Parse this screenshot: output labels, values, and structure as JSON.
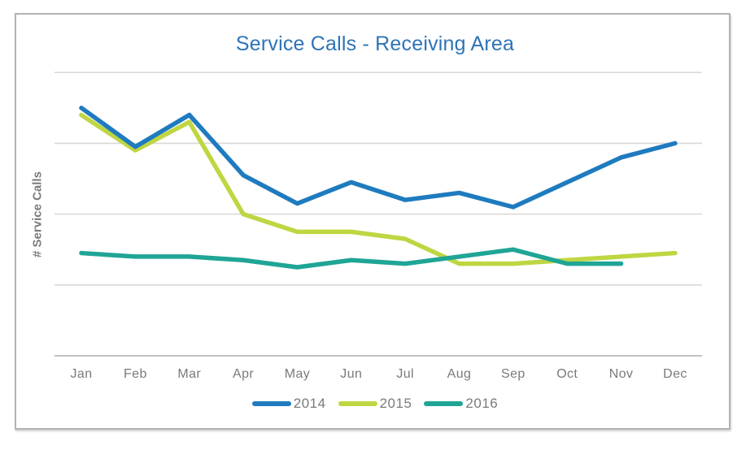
{
  "title": "Service Calls - Receiving Area",
  "y_axis_label": "# Service Calls",
  "colors": {
    "title_text": "#2e74b6",
    "axis_text": "#7a7a7a",
    "gridline": "#d9d9d9",
    "axis_line": "#c2c2c2",
    "frame_border": "#b3b3b3",
    "series_2014": "#1f7bbf",
    "series_2015": "#bfd642",
    "series_2016": "#1fa596"
  },
  "chart_data": {
    "type": "line",
    "title": "Service Calls - Receiving Area",
    "xlabel": "",
    "ylabel": "# Service Calls",
    "categories": [
      "Jan",
      "Feb",
      "Mar",
      "Apr",
      "May",
      "Jun",
      "Jul",
      "Aug",
      "Sep",
      "Oct",
      "Nov",
      "Dec"
    ],
    "series": [
      {
        "name": "2014",
        "color": "#1f7bbf",
        "values": [
          35,
          29.5,
          34,
          25.5,
          21.5,
          24.5,
          22,
          23,
          21,
          24.5,
          28,
          30
        ]
      },
      {
        "name": "2015",
        "color": "#bfd642",
        "values": [
          34,
          29,
          33,
          20,
          17.5,
          17.5,
          16.5,
          13,
          13,
          13.5,
          14,
          14.5
        ]
      },
      {
        "name": "2016",
        "color": "#1fa596",
        "values": [
          14.5,
          14,
          14,
          13.5,
          12.5,
          13.5,
          13,
          14,
          15,
          13,
          13,
          null
        ]
      }
    ],
    "ylim": [
      0,
      45
    ],
    "gridlines_y": [
      10,
      20,
      30,
      40
    ],
    "y_tick_labels_visible": false,
    "grid": "horizontal-only",
    "legend_position": "bottom",
    "legend_entries": [
      "2014",
      "2015",
      "2016"
    ],
    "draw_order": [
      "2015",
      "2016",
      "2014"
    ]
  }
}
